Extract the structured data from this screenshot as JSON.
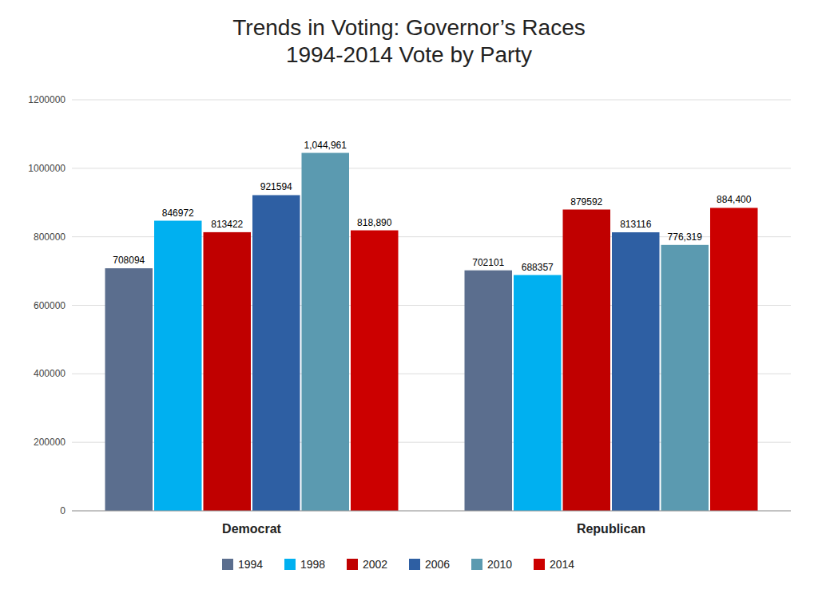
{
  "chart_data": {
    "type": "bar",
    "title": "Trends in Voting: Governor’s Races\n1994-2014 Vote by Party",
    "categories": [
      "Democrat",
      "Republican"
    ],
    "series": [
      {
        "name": "1994",
        "color": "#5b6e8e",
        "values": [
          708094,
          702101
        ],
        "value_labels": [
          "708094",
          "702101"
        ]
      },
      {
        "name": "1998",
        "color": "#00b0f0",
        "values": [
          846972,
          688357
        ],
        "value_labels": [
          "846972",
          "688357"
        ]
      },
      {
        "name": "2002",
        "color": "#c00000",
        "values": [
          813422,
          879592
        ],
        "value_labels": [
          "813422",
          "879592"
        ]
      },
      {
        "name": "2006",
        "color": "#2e5fa3",
        "values": [
          921594,
          813116
        ],
        "value_labels": [
          "921594",
          "813116"
        ]
      },
      {
        "name": "2010",
        "color": "#5b9ab0",
        "values": [
          1044961,
          776319
        ],
        "value_labels": [
          "1,044,961",
          "776,319"
        ]
      },
      {
        "name": "2014",
        "color": "#cc0000",
        "values": [
          818890,
          884400
        ],
        "value_labels": [
          "818,890",
          "884,400"
        ]
      }
    ],
    "ylim": [
      0,
      1200000
    ],
    "yticks": [
      0,
      200000,
      400000,
      600000,
      800000,
      1000000,
      1200000
    ],
    "grid": true,
    "legend": "bottom",
    "data_labels": true
  }
}
